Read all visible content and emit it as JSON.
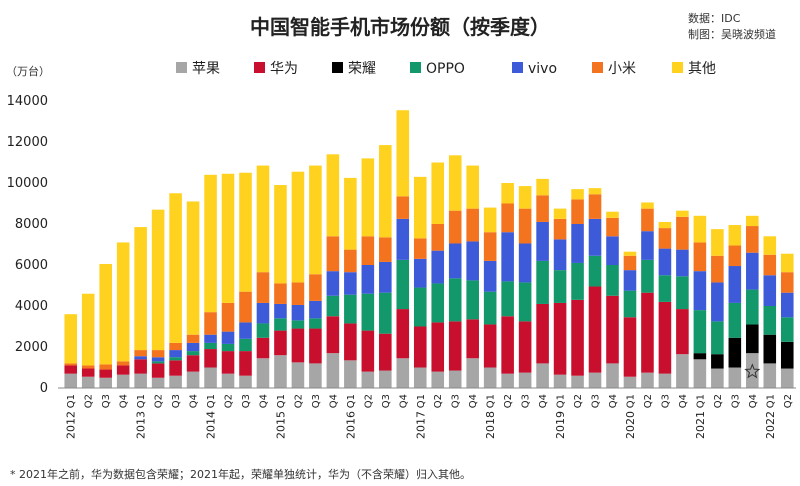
{
  "chart_data": {
    "type": "bar",
    "stacked": true,
    "title": "中国智能手机市场份额（按季度）",
    "source_lines": [
      "数据：IDC",
      "制图：吴晓波频道"
    ],
    "unit_label": "（万台）",
    "ylim": [
      0,
      14000
    ],
    "yticks": [
      0,
      2000,
      4000,
      6000,
      8000,
      10000,
      12000,
      14000
    ],
    "ytick_labels": [
      "0",
      "2000",
      "4000",
      "6000",
      "8000",
      "10000",
      "12000",
      "14000"
    ],
    "footnote": "* 2021年之前，华为数据包含荣耀；2021年起，荣耀单独统计，华为（不含荣耀）归入其他。",
    "legend_position": "top",
    "categories": [
      "2012 Q1",
      "2012 Q2",
      "2012 Q3",
      "2012 Q4",
      "2013 Q1",
      "2013 Q2",
      "2013 Q3",
      "2013 Q4",
      "2014 Q1",
      "2014 Q2",
      "2014 Q3",
      "2014 Q4",
      "2015 Q1",
      "2015 Q2",
      "2015 Q3",
      "2015 Q4",
      "2016 Q1",
      "2016 Q2",
      "2016 Q3",
      "2016 Q4",
      "2017 Q1",
      "2017 Q2",
      "2017 Q3",
      "2017 Q4",
      "2018 Q1",
      "2018 Q2",
      "2018 Q3",
      "2018 Q4",
      "2019 Q1",
      "2019 Q2",
      "2019 Q3",
      "2019 Q4",
      "2020 Q1",
      "2020 Q2",
      "2020 Q3",
      "2020 Q4",
      "2021 Q1",
      "2021 Q2",
      "2021 Q3",
      "2021 Q4",
      "2022 Q1",
      "2022 Q2"
    ],
    "quarter_labels": [
      "Q1",
      "Q2",
      "Q3",
      "Q4"
    ],
    "years": [
      {
        "label": "2012",
        "index": 0
      },
      {
        "label": "2013",
        "index": 4
      },
      {
        "label": "2014",
        "index": 8
      },
      {
        "label": "2015",
        "index": 12
      },
      {
        "label": "2016",
        "index": 16
      },
      {
        "label": "2017",
        "index": 20
      },
      {
        "label": "2018",
        "index": 24
      },
      {
        "label": "2019",
        "index": 28
      },
      {
        "label": "2020",
        "index": 32
      },
      {
        "label": "2021",
        "index": 36
      },
      {
        "label": "2022",
        "index": 40
      }
    ],
    "series": [
      {
        "name": "苹果",
        "color": "#a6a6a6",
        "values": [
          700,
          550,
          500,
          650,
          700,
          500,
          600,
          800,
          1000,
          700,
          600,
          1450,
          1600,
          1250,
          1200,
          1700,
          1350,
          800,
          850,
          1450,
          1000,
          800,
          850,
          1450,
          1000,
          700,
          750,
          1200,
          650,
          600,
          750,
          1200,
          550,
          750,
          700,
          1650,
          1400,
          950,
          1000,
          1700,
          1200,
          950
        ]
      },
      {
        "name": "华为",
        "color": "#c8102e",
        "values": [
          400,
          400,
          400,
          450,
          700,
          700,
          750,
          800,
          900,
          1100,
          1200,
          1000,
          1200,
          1650,
          1700,
          1800,
          1800,
          2000,
          1800,
          2400,
          2000,
          2400,
          2400,
          1900,
          2100,
          2800,
          2500,
          2900,
          3500,
          3700,
          4200,
          3300,
          2900,
          3900,
          3500,
          2200,
          0,
          0,
          0,
          0,
          0,
          0
        ]
      },
      {
        "name": "荣耀",
        "color": "#000000",
        "values": [
          0,
          0,
          0,
          0,
          0,
          0,
          0,
          0,
          0,
          0,
          0,
          0,
          0,
          0,
          0,
          0,
          0,
          0,
          0,
          0,
          0,
          0,
          0,
          0,
          0,
          0,
          0,
          0,
          0,
          0,
          0,
          0,
          0,
          0,
          0,
          0,
          300,
          700,
          1450,
          1400,
          1400,
          1300
        ]
      },
      {
        "name": "OPPO",
        "color": "#13986b",
        "values": [
          0,
          0,
          0,
          0,
          0,
          100,
          150,
          200,
          300,
          350,
          600,
          700,
          600,
          400,
          500,
          1000,
          1400,
          1800,
          2000,
          2400,
          1900,
          1900,
          2100,
          1900,
          1600,
          1700,
          1900,
          2100,
          1600,
          1800,
          1500,
          1500,
          1300,
          1600,
          1300,
          1600,
          2100,
          1600,
          1700,
          1700,
          1400,
          1200
        ]
      },
      {
        "name": "vivo",
        "color": "#3d5bd9",
        "values": [
          0,
          0,
          0,
          0,
          150,
          200,
          350,
          400,
          400,
          600,
          800,
          1000,
          700,
          750,
          850,
          1200,
          1100,
          1400,
          1500,
          2000,
          1400,
          1600,
          1700,
          1900,
          1500,
          2400,
          1900,
          1900,
          1500,
          1900,
          1800,
          1400,
          1000,
          1400,
          1300,
          1300,
          1900,
          1900,
          1800,
          1800,
          1500,
          1200
        ]
      },
      {
        "name": "小米",
        "color": "#f4731f",
        "values": [
          100,
          150,
          250,
          200,
          300,
          350,
          350,
          400,
          1100,
          1400,
          1500,
          1500,
          1000,
          1100,
          1300,
          1700,
          1100,
          1400,
          1200,
          1100,
          1000,
          1300,
          1600,
          1600,
          1400,
          1400,
          1700,
          1300,
          1000,
          1200,
          1200,
          900,
          700,
          1100,
          1000,
          1600,
          1400,
          1300,
          1000,
          1300,
          1000,
          1000
        ]
      },
      {
        "name": "其他",
        "color": "#ffd21f",
        "values": [
          2400,
          3500,
          4900,
          5800,
          6000,
          6850,
          7300,
          6500,
          6700,
          6300,
          5800,
          5200,
          4800,
          5400,
          5300,
          4000,
          3500,
          3800,
          4500,
          4200,
          3000,
          3000,
          2700,
          2100,
          1200,
          1000,
          1100,
          800,
          500,
          500,
          300,
          300,
          200,
          300,
          300,
          300,
          1300,
          1300,
          1000,
          500,
          900,
          900
        ]
      }
    ],
    "annotation": {
      "type": "star",
      "category": "2021 Q4",
      "y": 800
    }
  }
}
